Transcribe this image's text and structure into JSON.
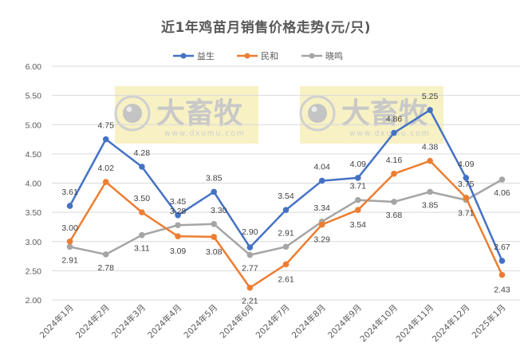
{
  "chart_data": {
    "type": "line",
    "title": "近1年鸡苗月销售价格走势(元/只)",
    "xlabel": "",
    "ylabel": "",
    "ylim": [
      2.0,
      6.0
    ],
    "yticks": [
      "6.00",
      "5.50",
      "5.00",
      "4.50",
      "4.00",
      "3.50",
      "3.00",
      "2.50",
      "2.00"
    ],
    "grid": true,
    "legend_position": "top",
    "categories": [
      "2024年1月",
      "2024年2月",
      "2024年3月",
      "2024年4月",
      "2024年5月",
      "2024年6月",
      "2024年7月",
      "2024年8月",
      "2024年9月",
      "2024年10月",
      "2024年11月",
      "2024年12月",
      "2025年1月"
    ],
    "series": [
      {
        "name": "益生",
        "color": "#4472C4",
        "values": [
          3.61,
          4.75,
          4.28,
          3.45,
          3.85,
          2.9,
          3.54,
          4.04,
          4.09,
          4.86,
          5.25,
          4.09,
          2.67
        ]
      },
      {
        "name": "民和",
        "color": "#ED7D31",
        "values": [
          3.0,
          4.02,
          3.5,
          3.09,
          3.08,
          2.21,
          2.61,
          3.29,
          3.54,
          4.16,
          4.38,
          3.75,
          2.43
        ]
      },
      {
        "name": "晓鸣",
        "color": "#A5A5A5",
        "values": [
          2.91,
          2.78,
          3.11,
          3.28,
          3.3,
          2.77,
          2.91,
          3.34,
          3.71,
          3.68,
          3.85,
          3.71,
          4.06
        ]
      }
    ]
  },
  "watermark": {
    "brand": "大畜牧",
    "url": "www.dxumu.com",
    "background": "#F7F1C4"
  }
}
